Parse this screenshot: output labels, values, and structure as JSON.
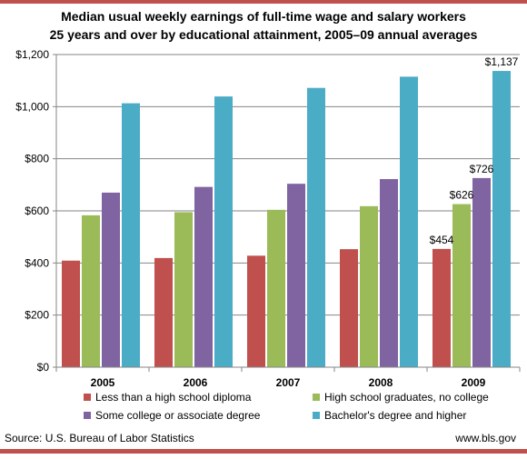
{
  "colors": {
    "rule": "#c0504d",
    "series": [
      "#c0504d",
      "#9bbb59",
      "#8064a2",
      "#4bacc6"
    ],
    "axis": "#868686",
    "grid": "#868686"
  },
  "footer": {
    "source": "Source: U.S. Bureau of Labor Statistics",
    "site": "www.bls.gov"
  },
  "chart_data": {
    "type": "bar",
    "title_line1": "Median usual weekly earnings of full-time wage and salary workers",
    "title_line2": "25 years and over by educational attainment, 2005–09 annual averages",
    "categories": [
      "2005",
      "2006",
      "2007",
      "2008",
      "2009"
    ],
    "series": [
      {
        "name": "Less than a high school diploma",
        "values": [
          409,
          419,
          428,
          453,
          454
        ]
      },
      {
        "name": "High school graduates, no college",
        "values": [
          583,
          595,
          604,
          618,
          626
        ]
      },
      {
        "name": "Some college or associate  degree",
        "values": [
          670,
          692,
          704,
          722,
          726
        ]
      },
      {
        "name": "Bachelor's degree and higher",
        "values": [
          1013,
          1039,
          1072,
          1115,
          1137
        ]
      }
    ],
    "ylim": [
      0,
      1200
    ],
    "yticks": [
      0,
      200,
      400,
      600,
      800,
      1000,
      1200
    ],
    "ytick_labels": [
      "$0",
      "$200",
      "$400",
      "$600",
      "$800",
      "$1,000",
      "$1,200"
    ],
    "gridlines": true,
    "legend_position": "bottom",
    "data_labels": [
      {
        "category": "2009",
        "series": 0,
        "text": "$454"
      },
      {
        "category": "2009",
        "series": 1,
        "text": "$626"
      },
      {
        "category": "2009",
        "series": 2,
        "text": "$726"
      },
      {
        "category": "2009",
        "series": 3,
        "text": "$1,137"
      }
    ]
  }
}
